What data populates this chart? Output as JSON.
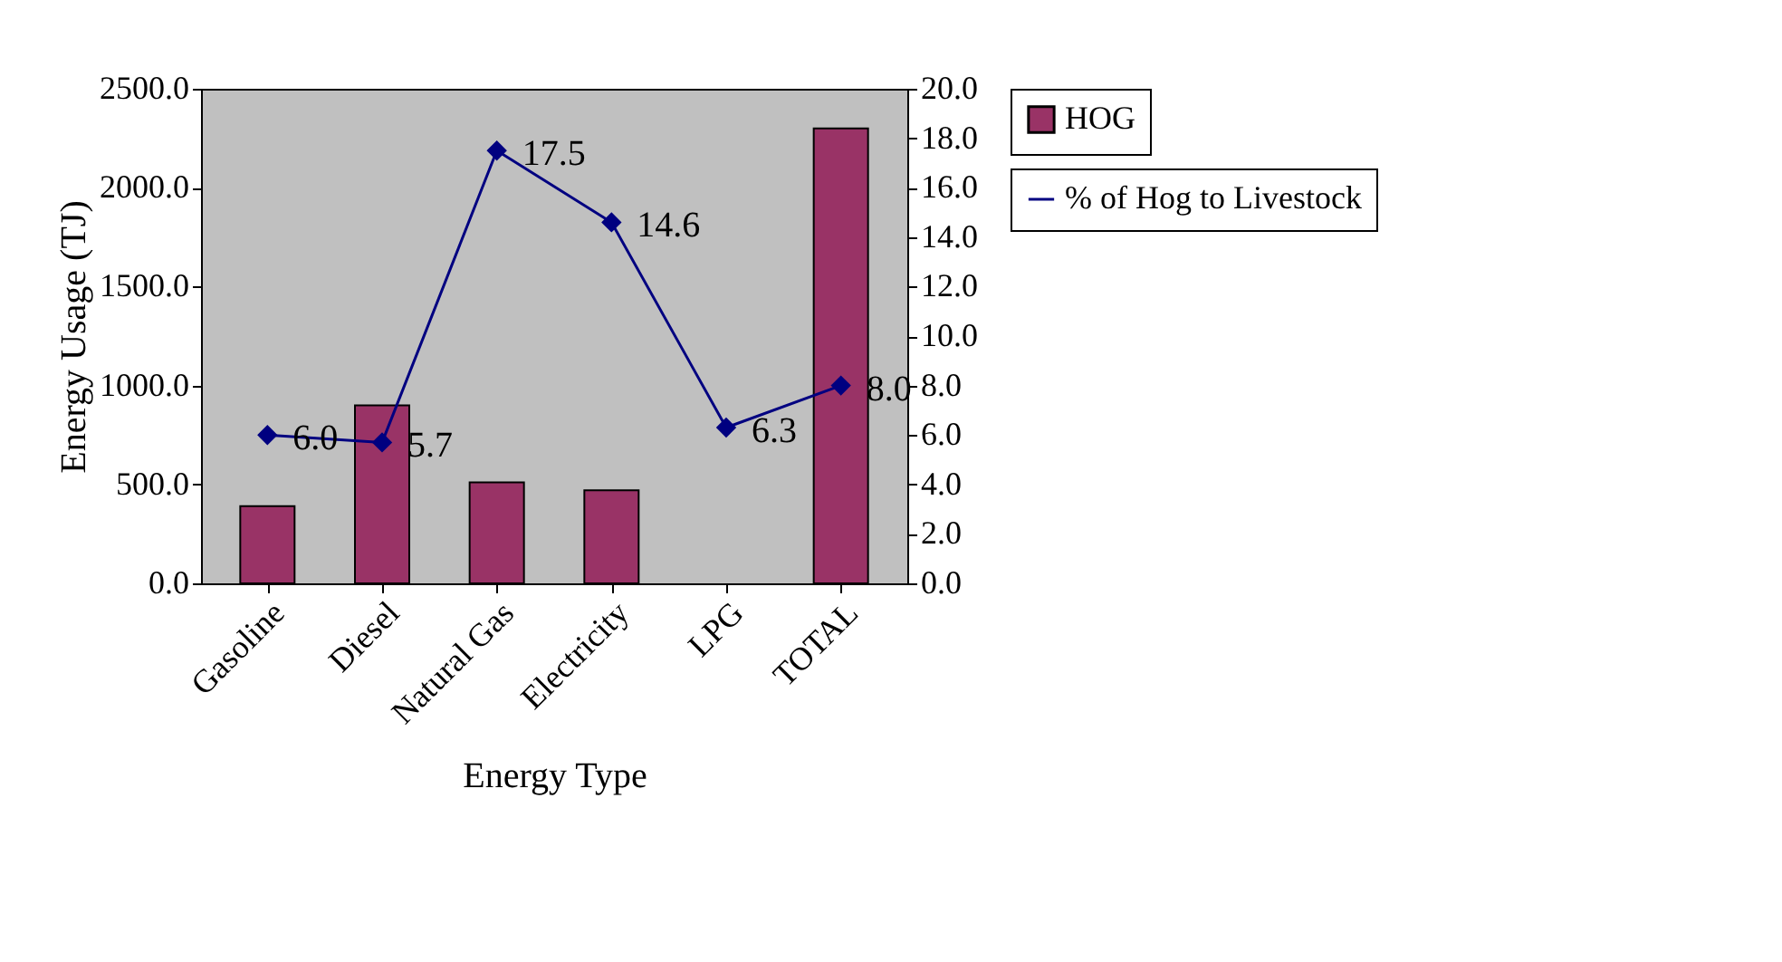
{
  "chart_data": {
    "type": "bar",
    "xlabel": "Energy Type",
    "ylabel": "Energy Usage (TJ)",
    "categories": [
      "Gasoline",
      "Diesel",
      "Natural Gas",
      "Electricity",
      "LPG",
      "TOTAL"
    ],
    "series": [
      {
        "name": "HOG",
        "color": "#993366",
        "values": [
          390,
          900,
          510,
          470,
          null,
          2300
        ]
      },
      {
        "name": "% of Hog to Livestock",
        "type": "line",
        "axis": "y2",
        "color": "#000080",
        "values": [
          6.0,
          5.7,
          17.5,
          14.6,
          6.3,
          8.0
        ],
        "value_labels": [
          "6.0",
          "5.7",
          "17.5",
          "14.6",
          "6.3",
          "8.0"
        ],
        "marker": "diamond"
      }
    ],
    "ylim": [
      0,
      2500
    ],
    "yticks": [
      {
        "value": 0,
        "label": "0.0"
      },
      {
        "value": 500,
        "label": "500.0"
      },
      {
        "value": 1000,
        "label": "1000.0"
      },
      {
        "value": 1500,
        "label": "1500.0"
      },
      {
        "value": 2000,
        "label": "2000.0"
      },
      {
        "value": 2500,
        "label": "2500.0"
      }
    ],
    "y2lim": [
      0,
      20
    ],
    "y2ticks": [
      {
        "value": 0,
        "label": "0.0"
      },
      {
        "value": 2,
        "label": "2.0"
      },
      {
        "value": 4,
        "label": "4.0"
      },
      {
        "value": 6,
        "label": "6.0"
      },
      {
        "value": 8,
        "label": "8.0"
      },
      {
        "value": 10,
        "label": "10.0"
      },
      {
        "value": 12,
        "label": "12.0"
      },
      {
        "value": 14,
        "label": "14.0"
      },
      {
        "value": 16,
        "label": "16.0"
      },
      {
        "value": 18,
        "label": "18.0"
      },
      {
        "value": 20,
        "label": "20.0"
      }
    ],
    "grid": false,
    "legend": "right"
  }
}
